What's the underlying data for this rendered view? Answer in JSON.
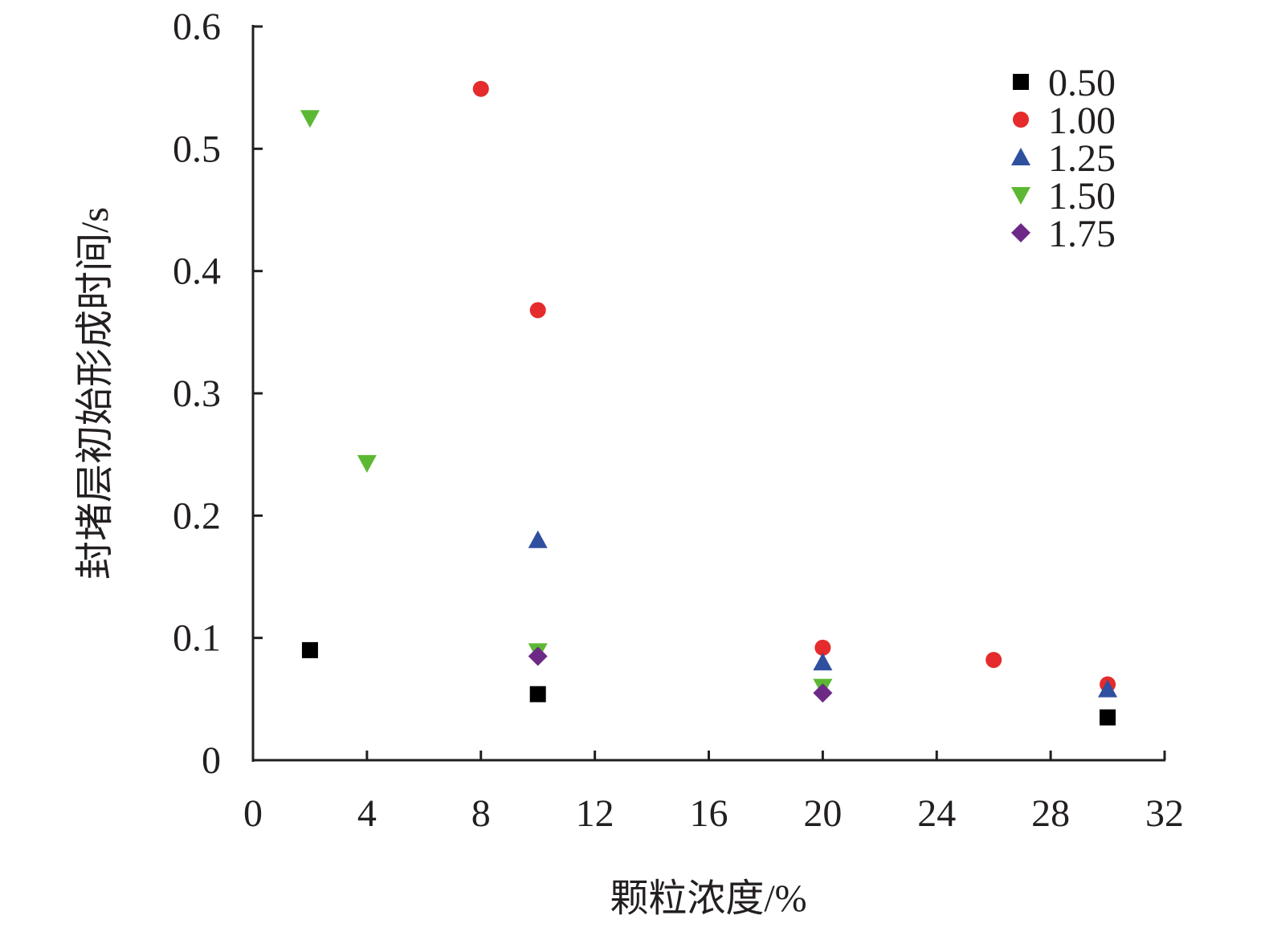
{
  "chart_data": {
    "type": "scatter",
    "title": "",
    "xlabel": "颗粒浓度/%",
    "ylabel": "封堵层初始形成时间/s",
    "xlim": [
      0,
      32
    ],
    "ylim": [
      0,
      0.6
    ],
    "xticks": [
      0,
      4,
      8,
      12,
      16,
      20,
      24,
      28,
      32
    ],
    "xtick_labels": [
      "0",
      "4",
      "8",
      "12",
      "16",
      "20",
      "24",
      "28",
      "32"
    ],
    "yticks": [
      0,
      0.1,
      0.2,
      0.3,
      0.4,
      0.5,
      0.6
    ],
    "ytick_labels": [
      "0",
      "0.1",
      "0.2",
      "0.3",
      "0.4",
      "0.5",
      "0.6"
    ],
    "grid": false,
    "legend_position": "top-right",
    "series": [
      {
        "name": "0.50",
        "marker": "square",
        "color": "#000000",
        "points": [
          [
            2,
            0.09
          ],
          [
            10,
            0.054
          ],
          [
            30,
            0.035
          ]
        ]
      },
      {
        "name": "1.00",
        "marker": "circle",
        "color": "#e52b2b",
        "points": [
          [
            8,
            0.549
          ],
          [
            10,
            0.368
          ],
          [
            20,
            0.092
          ],
          [
            26,
            0.082
          ],
          [
            30,
            0.062
          ]
        ]
      },
      {
        "name": "1.25",
        "marker": "triangle-up",
        "color": "#2f4f9f",
        "points": [
          [
            10,
            0.18
          ],
          [
            20,
            0.08
          ],
          [
            30,
            0.058
          ]
        ]
      },
      {
        "name": "1.50",
        "marker": "triangle-down",
        "color": "#5cb833",
        "points": [
          [
            2,
            0.525
          ],
          [
            4,
            0.243
          ],
          [
            10,
            0.089
          ],
          [
            20,
            0.06
          ]
        ]
      },
      {
        "name": "1.75",
        "marker": "diamond",
        "color": "#6c2a86",
        "points": [
          [
            10,
            0.085
          ],
          [
            20,
            0.055
          ]
        ]
      }
    ]
  }
}
